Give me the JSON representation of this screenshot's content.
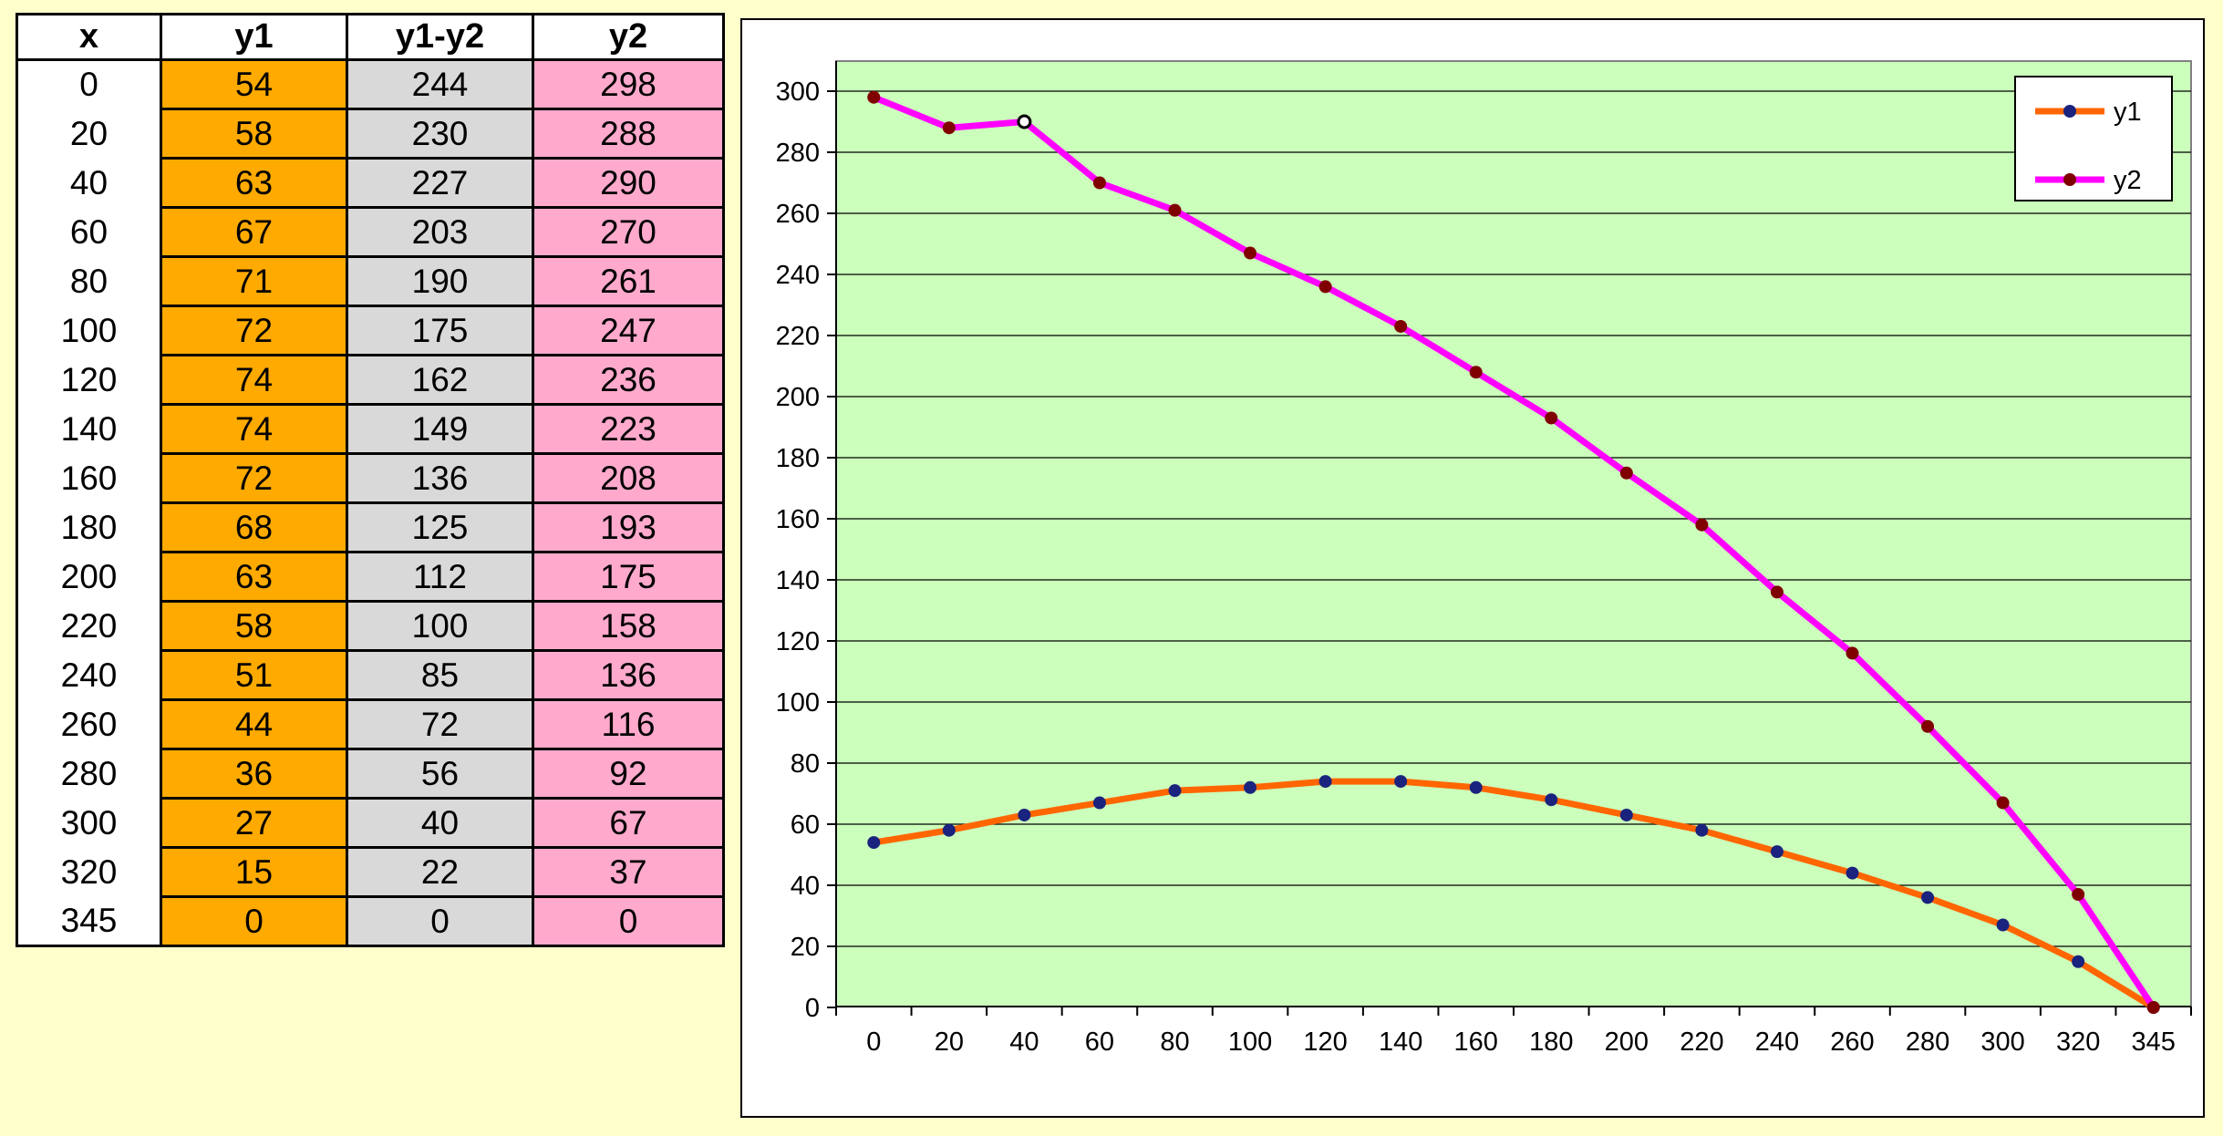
{
  "table": {
    "headers": [
      "x",
      "y1",
      "y1-y2",
      "y2"
    ],
    "rows": [
      [
        "0",
        "54",
        "244",
        "298"
      ],
      [
        "20",
        "58",
        "230",
        "288"
      ],
      [
        "40",
        "63",
        "227",
        "290"
      ],
      [
        "60",
        "67",
        "203",
        "270"
      ],
      [
        "80",
        "71",
        "190",
        "261"
      ],
      [
        "100",
        "72",
        "175",
        "247"
      ],
      [
        "120",
        "74",
        "162",
        "236"
      ],
      [
        "140",
        "74",
        "149",
        "223"
      ],
      [
        "160",
        "72",
        "136",
        "208"
      ],
      [
        "180",
        "68",
        "125",
        "193"
      ],
      [
        "200",
        "63",
        "112",
        "175"
      ],
      [
        "220",
        "58",
        "100",
        "158"
      ],
      [
        "240",
        "51",
        "85",
        "136"
      ],
      [
        "260",
        "44",
        "72",
        "116"
      ],
      [
        "280",
        "36",
        "56",
        "92"
      ],
      [
        "300",
        "27",
        "40",
        "67"
      ],
      [
        "320",
        "15",
        "22",
        "37"
      ],
      [
        "345",
        "0",
        "0",
        "0"
      ]
    ],
    "colors": {
      "y1": "#ffaa00",
      "diff": "#d9d9d9",
      "y2": "#ffaacc"
    }
  },
  "chart_data": {
    "type": "line",
    "title": "",
    "xlabel": "",
    "ylabel": "",
    "categories": [
      "0",
      "20",
      "40",
      "60",
      "80",
      "100",
      "120",
      "140",
      "160",
      "180",
      "200",
      "220",
      "240",
      "260",
      "280",
      "300",
      "320",
      "345"
    ],
    "series": [
      {
        "name": "y1",
        "values": [
          54,
          58,
          63,
          67,
          71,
          72,
          74,
          74,
          72,
          68,
          63,
          58,
          51,
          44,
          36,
          27,
          15,
          0
        ],
        "color": "#ff6600",
        "marker_color": "#1a237e"
      },
      {
        "name": "y2",
        "values": [
          298,
          288,
          290,
          270,
          261,
          247,
          236,
          223,
          208,
          193,
          175,
          158,
          136,
          116,
          92,
          67,
          37,
          0
        ],
        "color": "#ff00ff",
        "marker_color": "#800000"
      }
    ],
    "ylim": [
      0,
      300
    ],
    "yticks": [
      "0",
      "20",
      "40",
      "60",
      "80",
      "100",
      "120",
      "140",
      "160",
      "180",
      "200",
      "220",
      "240",
      "260",
      "280",
      "300"
    ],
    "grid": true,
    "plot_background": "#ccffbb",
    "legend_position": "top-right",
    "highlighted_point": {
      "series": "y2",
      "category": "40"
    }
  }
}
